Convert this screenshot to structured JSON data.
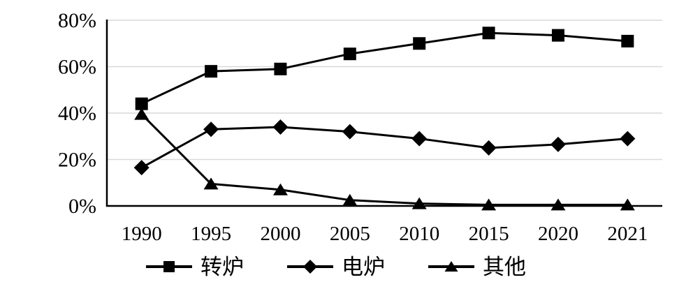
{
  "chart_data": {
    "type": "line",
    "title": "",
    "xlabel": "",
    "ylabel": "",
    "categories": [
      "1990",
      "1995",
      "2000",
      "2005",
      "2010",
      "2015",
      "2020",
      "2021"
    ],
    "series": [
      {
        "name": "转炉",
        "marker": "square",
        "values": [
          44,
          58,
          59,
          65.5,
          70,
          74.5,
          73.5,
          71
        ]
      },
      {
        "name": "电炉",
        "marker": "diamond",
        "values": [
          16.5,
          33,
          34,
          32,
          29,
          25,
          26.5,
          29
        ]
      },
      {
        "name": "其他",
        "marker": "triangle",
        "values": [
          39.5,
          9.5,
          7,
          2.5,
          1,
          0.5,
          0.5,
          0.5
        ]
      }
    ],
    "ylim": [
      0,
      80
    ],
    "ytick_step": 20,
    "ytick_labels": [
      "0%",
      "20%",
      "40%",
      "60%",
      "80%"
    ],
    "grid": "horizontal-gridlines-on",
    "legend_position": "bottom",
    "colors": {
      "series_line": "#000000",
      "marker_fill": "#000000",
      "gridline": "#d9d9d9",
      "axis_line": "#000000",
      "background": "#ffffff",
      "tick_text": "#000000"
    }
  }
}
